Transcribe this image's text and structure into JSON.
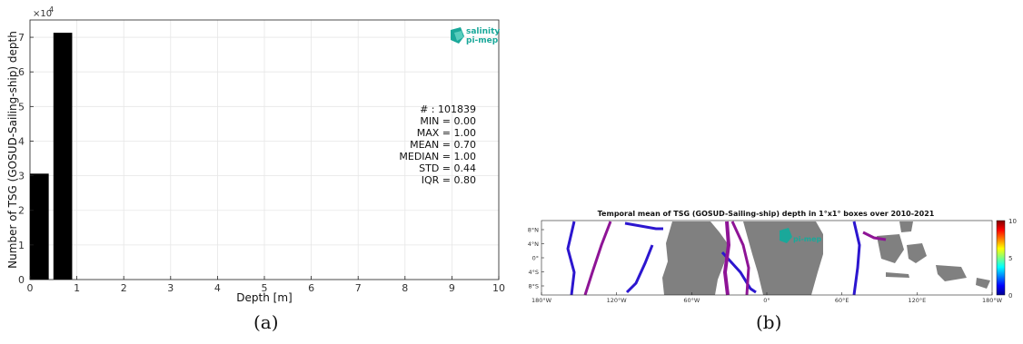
{
  "chart_data": [
    {
      "type": "bar",
      "xlabel": "Depth [m]",
      "ylabel": "Number of TSG (GOSUD-Sailing-ship) depth",
      "y_exponent_label": "×10",
      "y_exponent_power": "4",
      "xlim": [
        0,
        10
      ],
      "ylim": [
        0,
        75000
      ],
      "x_ticks": [
        "0",
        "1",
        "2",
        "3",
        "4",
        "5",
        "6",
        "7",
        "8",
        "9",
        "10"
      ],
      "y_ticks": [
        "0",
        "1",
        "2",
        "3",
        "4",
        "5",
        "6",
        "7"
      ],
      "bars": [
        {
          "x_start": 0.0,
          "x_end": 0.4,
          "value": 30600
        },
        {
          "x_start": 0.5,
          "x_end": 0.9,
          "value": 71300
        }
      ],
      "stats": [
        "# : 101839",
        "MIN = 0.00",
        "MAX =  1.00",
        "MEAN = 0.70",
        "MEDIAN = 1.00",
        "STD = 0.44",
        "IQR = 0.80"
      ],
      "logo": {
        "line1": "salinity",
        "line2": "pi-mep"
      },
      "caption": "(a)",
      "grid": true
    },
    {
      "type": "heatmap",
      "title": "Temporal mean of TSG (GOSUD-Sailing-ship) depth in 1°x1° boxes over 2010-2021",
      "x_ticks": [
        "180°W",
        "120°W",
        "60°W",
        "0°",
        "60°E",
        "120°E",
        "180°W"
      ],
      "y_ticks": [
        "8°N",
        "4°N",
        "0°",
        "4°S",
        "8°S"
      ],
      "lon_range": [
        -180,
        180
      ],
      "lat_range": [
        -10,
        10
      ],
      "colorbar_ticks": [
        "10",
        "5",
        "0"
      ],
      "colorbar_range": [
        0,
        10
      ],
      "logo": {
        "line1": "",
        "line2": "pi-mep"
      },
      "caption": "(b)"
    }
  ],
  "colors": {
    "bar": "#000000",
    "grid": "#e6e6e6",
    "logo": "#1aa89a",
    "land": "#808080",
    "track_blue": "#2c16cf",
    "track_purple": "#8e1496"
  }
}
